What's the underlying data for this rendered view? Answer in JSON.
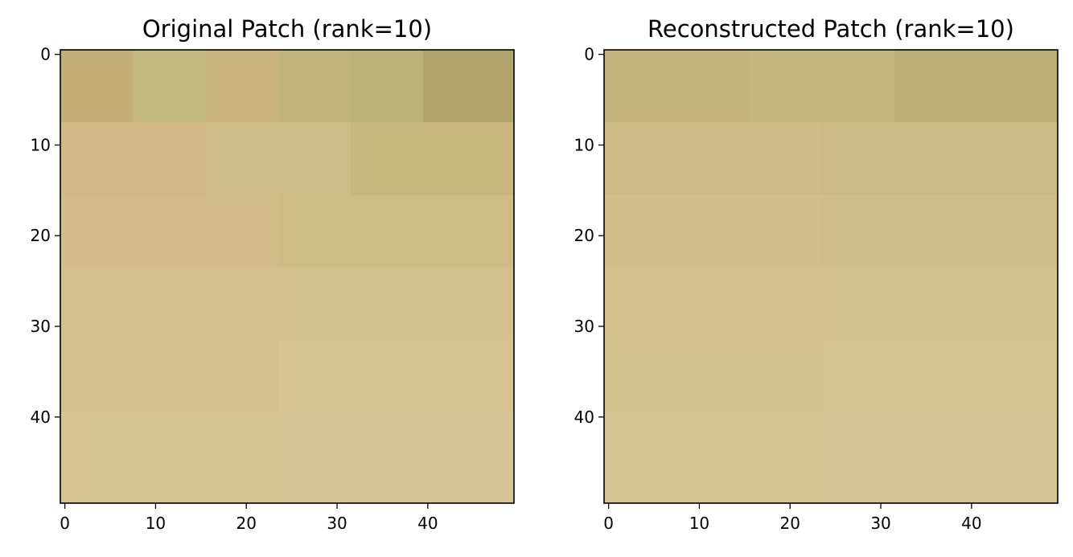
{
  "chart_data": [
    {
      "type": "heatmap",
      "title": "Original Patch (rank=10)",
      "xlabel": "",
      "ylabel": "",
      "grid": false,
      "pixel_grid": [
        50,
        50
      ],
      "xlim": [
        -0.5,
        49.5
      ],
      "ylim": [
        49.5,
        -0.5
      ],
      "x_ticks": [
        0,
        10,
        20,
        30,
        40
      ],
      "y_ticks": [
        0,
        10,
        20,
        30,
        40
      ],
      "color_regions": [
        {
          "rows": [
            0,
            7
          ],
          "cols": [
            0,
            7
          ],
          "color": "#c4ad76"
        },
        {
          "rows": [
            0,
            7
          ],
          "cols": [
            8,
            15
          ],
          "color": "#c2b87f"
        },
        {
          "rows": [
            0,
            7
          ],
          "cols": [
            16,
            23
          ],
          "color": "#c9b27d"
        },
        {
          "rows": [
            0,
            7
          ],
          "cols": [
            24,
            31
          ],
          "color": "#c0b47c"
        },
        {
          "rows": [
            0,
            7
          ],
          "cols": [
            32,
            39
          ],
          "color": "#bdb27a"
        },
        {
          "rows": [
            0,
            7
          ],
          "cols": [
            40,
            49
          ],
          "color": "#b1a46d"
        },
        {
          "rows": [
            8,
            15
          ],
          "cols": [
            0,
            15
          ],
          "color": "#d2b886"
        },
        {
          "rows": [
            8,
            15
          ],
          "cols": [
            16,
            31
          ],
          "color": "#cdbc87"
        },
        {
          "rows": [
            8,
            15
          ],
          "cols": [
            32,
            49
          ],
          "color": "#c9b67e"
        },
        {
          "rows": [
            16,
            23
          ],
          "cols": [
            0,
            23
          ],
          "color": "#d3bc89"
        },
        {
          "rows": [
            16,
            23
          ],
          "cols": [
            24,
            49
          ],
          "color": "#cebb85"
        },
        {
          "rows": [
            24,
            31
          ],
          "cols": [
            0,
            23
          ],
          "color": "#d4bf8d"
        },
        {
          "rows": [
            24,
            31
          ],
          "cols": [
            24,
            49
          ],
          "color": "#d2c08f"
        },
        {
          "rows": [
            32,
            39
          ],
          "cols": [
            0,
            23
          ],
          "color": "#d5bf8e"
        },
        {
          "rows": [
            32,
            39
          ],
          "cols": [
            24,
            49
          ],
          "color": "#d6c492"
        },
        {
          "rows": [
            40,
            49
          ],
          "cols": [
            0,
            23
          ],
          "color": "#d8c492"
        },
        {
          "rows": [
            40,
            49
          ],
          "cols": [
            24,
            49
          ],
          "color": "#d6c595"
        }
      ]
    },
    {
      "type": "heatmap",
      "title": "Reconstructed Patch (rank=10)",
      "xlabel": "",
      "ylabel": "",
      "grid": false,
      "pixel_grid": [
        50,
        50
      ],
      "xlim": [
        -0.5,
        49.5
      ],
      "ylim": [
        49.5,
        -0.5
      ],
      "x_ticks": [
        0,
        10,
        20,
        30,
        40
      ],
      "y_ticks": [
        0,
        10,
        20,
        30,
        40
      ],
      "color_regions": [
        {
          "rows": [
            0,
            7
          ],
          "cols": [
            0,
            15
          ],
          "color": "#c5b17b"
        },
        {
          "rows": [
            0,
            7
          ],
          "cols": [
            16,
            31
          ],
          "color": "#c4b57e"
        },
        {
          "rows": [
            0,
            7
          ],
          "cols": [
            32,
            49
          ],
          "color": "#bbae77"
        },
        {
          "rows": [
            8,
            15
          ],
          "cols": [
            0,
            23
          ],
          "color": "#cfba87"
        },
        {
          "rows": [
            8,
            15
          ],
          "cols": [
            24,
            49
          ],
          "color": "#cbba85"
        },
        {
          "rows": [
            16,
            23
          ],
          "cols": [
            0,
            23
          ],
          "color": "#d3bd8a"
        },
        {
          "rows": [
            16,
            23
          ],
          "cols": [
            24,
            49
          ],
          "color": "#d0bd89"
        },
        {
          "rows": [
            24,
            31
          ],
          "cols": [
            0,
            23
          ],
          "color": "#d5c08e"
        },
        {
          "rows": [
            24,
            31
          ],
          "cols": [
            24,
            49
          ],
          "color": "#d3c18f"
        },
        {
          "rows": [
            32,
            39
          ],
          "cols": [
            0,
            23
          ],
          "color": "#d5c18f"
        },
        {
          "rows": [
            32,
            39
          ],
          "cols": [
            24,
            49
          ],
          "color": "#d4c391"
        },
        {
          "rows": [
            40,
            49
          ],
          "cols": [
            0,
            23
          ],
          "color": "#d7c493"
        },
        {
          "rows": [
            40,
            49
          ],
          "cols": [
            24,
            49
          ],
          "color": "#d5c594"
        }
      ]
    }
  ]
}
